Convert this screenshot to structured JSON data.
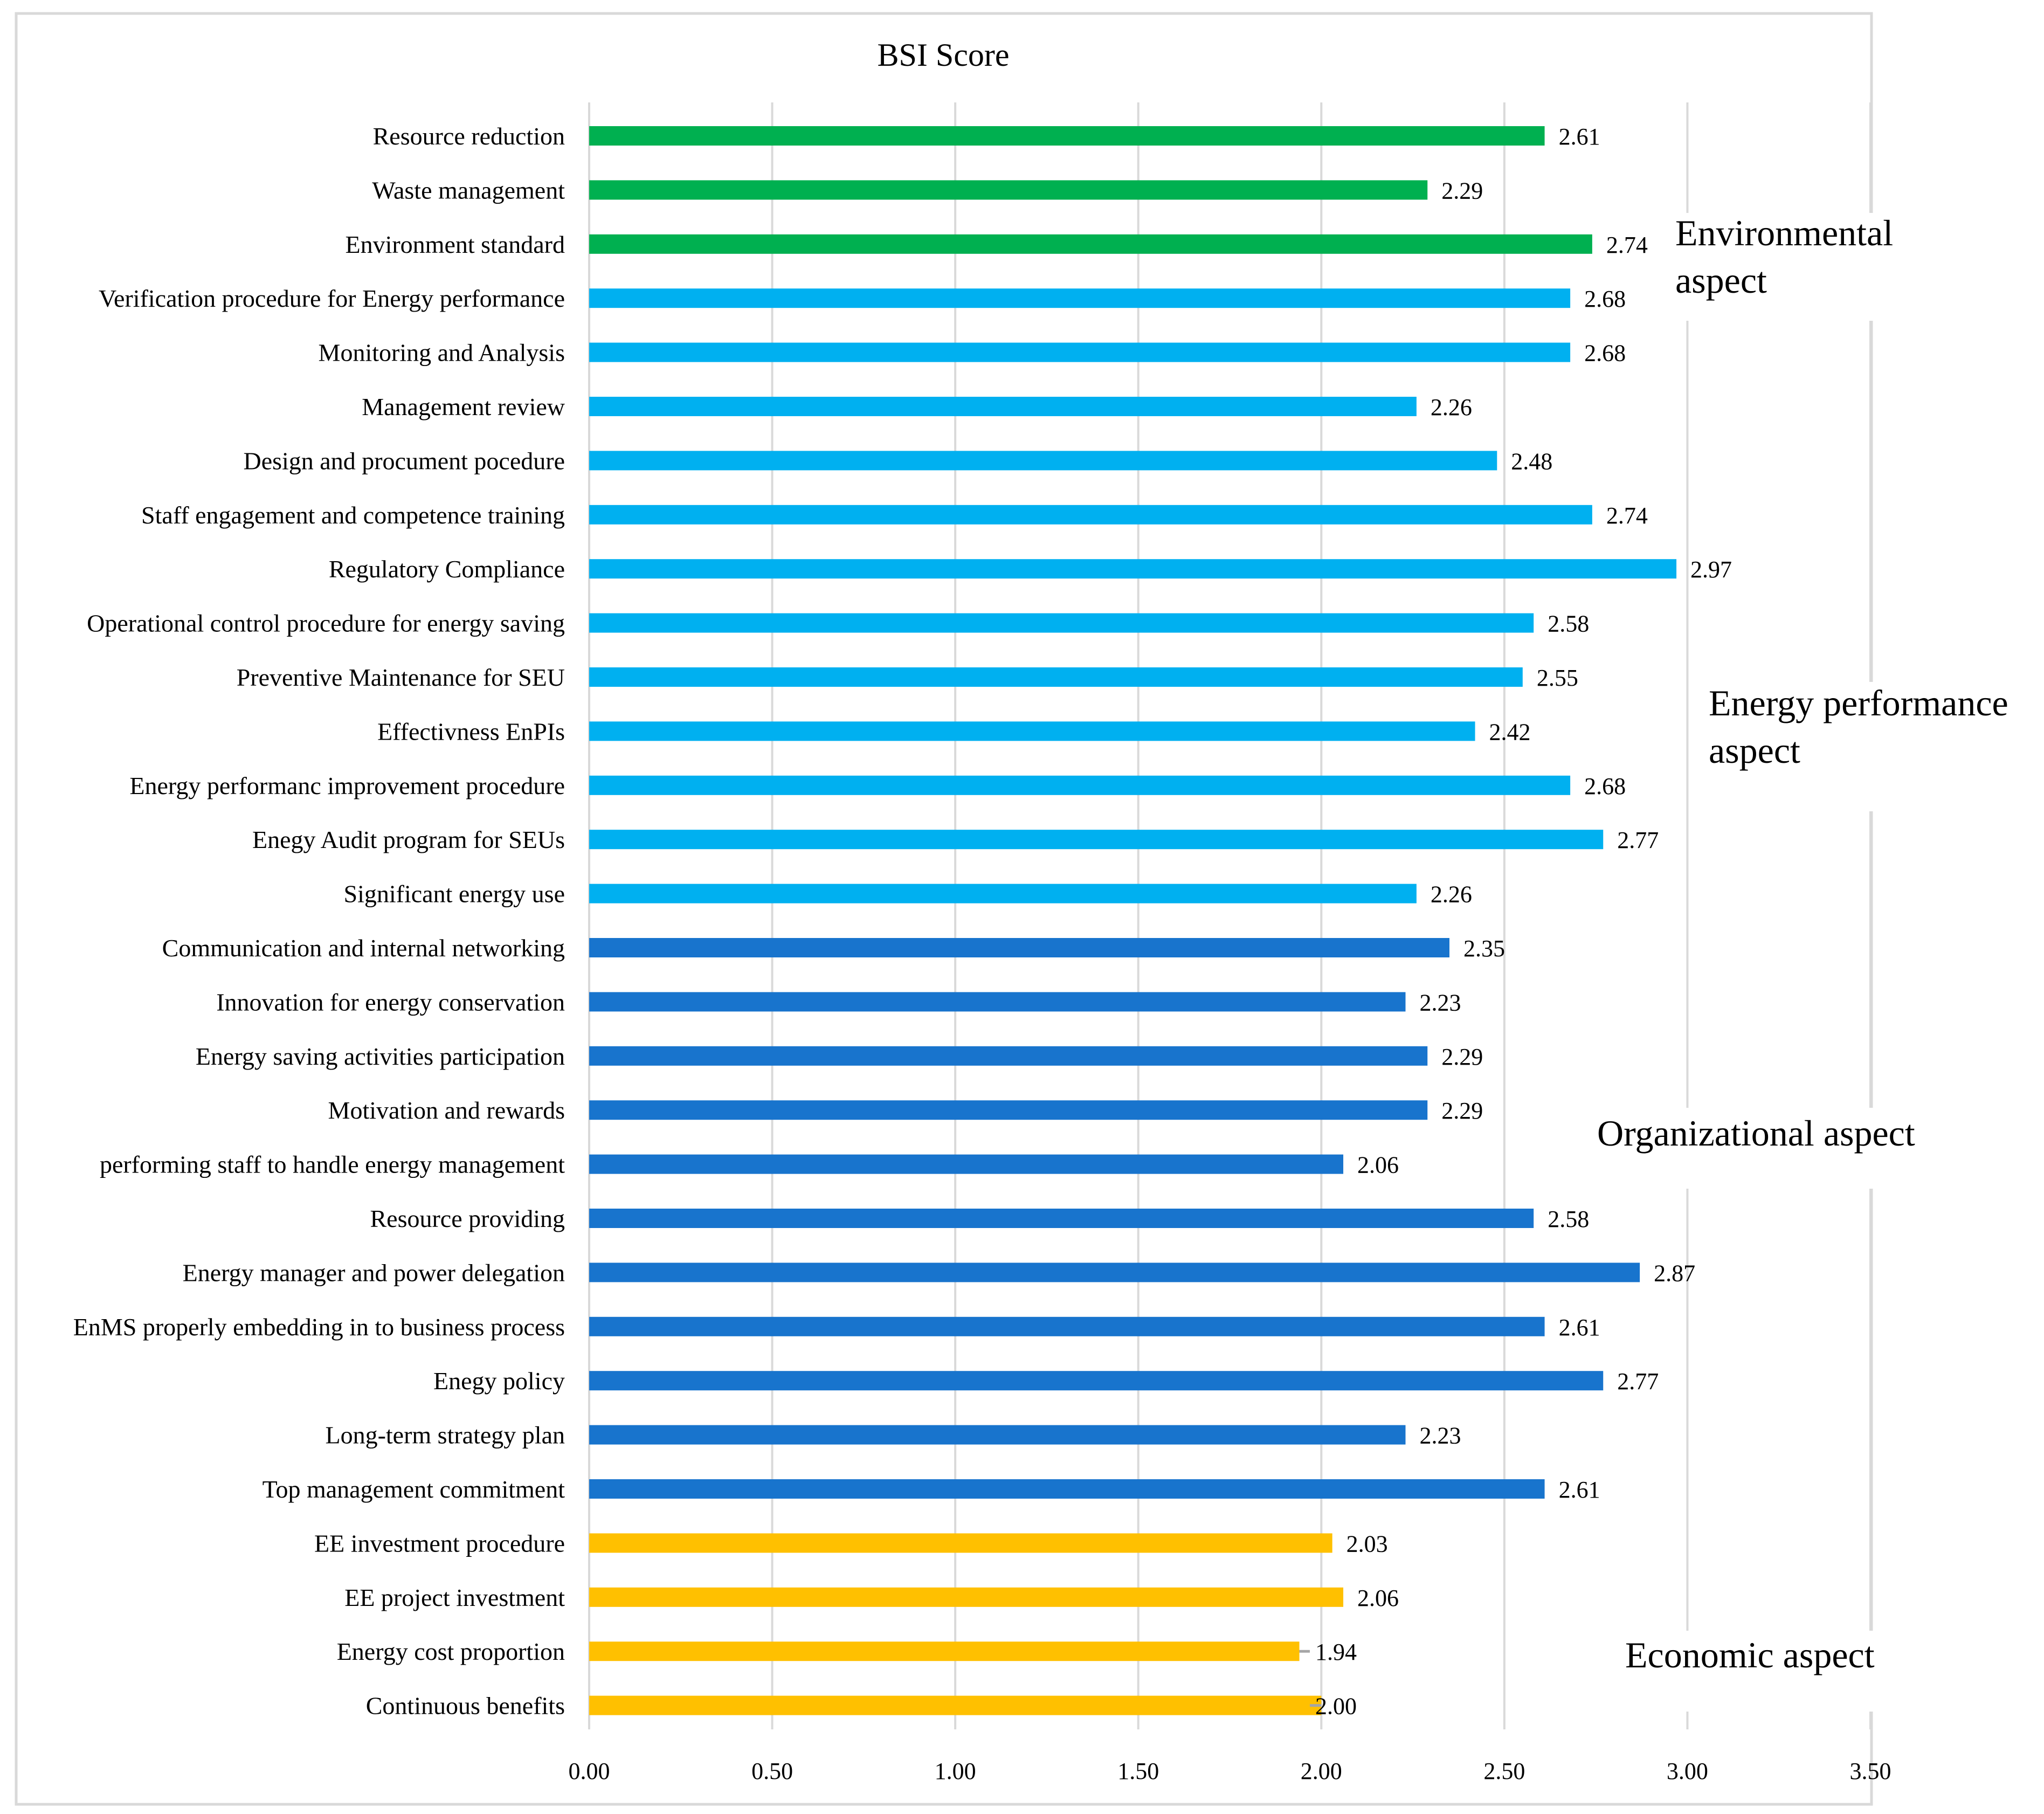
{
  "chart_data": {
    "type": "bar",
    "orientation": "horizontal",
    "title": "BSI Score",
    "xlabel": "",
    "ylabel": "",
    "xlim": [
      0,
      3.5
    ],
    "xticks": [
      "0.00",
      "0.50",
      "1.00",
      "1.50",
      "2.00",
      "2.50",
      "3.00",
      "3.50"
    ],
    "grid": true,
    "categories": [
      "Resource reduction",
      "Waste management",
      "Environment standard",
      "Verification procedure for Energy performance",
      "Monitoring and Analysis",
      "Management review",
      "Design and procument pocedure",
      "Staff engagement and competence training",
      "Regulatory Compliance",
      "Operational control procedure for energy saving",
      "Preventive Maintenance for SEU",
      "Effectivness EnPIs",
      "Energy performanc improvement procedure",
      "Enegy Audit program for SEUs",
      "Significant energy use",
      "Communication and internal networking",
      "Innovation for energy conservation",
      "Energy saving activities participation",
      "Motivation and rewards",
      "performing staff to handle energy management",
      "Resource providing",
      "Energy manager and power delegation",
      "EnMS properly embedding in to business process",
      "Enegy policy",
      "Long-term strategy plan",
      "Top management commitment",
      "EE investment procedure",
      "EE project investment",
      "Energy cost proportion",
      "Continuous benefits"
    ],
    "values": [
      2.61,
      2.29,
      2.74,
      2.68,
      2.68,
      2.26,
      2.48,
      2.74,
      2.97,
      2.58,
      2.55,
      2.42,
      2.68,
      2.77,
      2.26,
      2.35,
      2.23,
      2.29,
      2.29,
      2.06,
      2.58,
      2.87,
      2.61,
      2.77,
      2.23,
      2.61,
      2.03,
      2.06,
      1.94,
      2.0
    ],
    "value_labels": [
      "2.61",
      "2.29",
      "2.74",
      "2.68",
      "2.68",
      "2.26",
      "2.48",
      "2.74",
      "2.97",
      "2.58",
      "2.55",
      "2.42",
      "2.68",
      "2.77",
      "2.26",
      "2.35",
      "2.23",
      "2.29",
      "2.29",
      "2.06",
      "2.58",
      "2.87",
      "2.61",
      "2.77",
      "2.23",
      "2.61",
      "2.03",
      "2.06",
      "1.94",
      "2.00"
    ],
    "groups": [
      {
        "name": "Environmental aspect",
        "lines": [
          "Environmental",
          "aspect"
        ],
        "color": "#00b050",
        "start": 0,
        "end": 2
      },
      {
        "name": "Energy performance aspect",
        "lines": [
          "Energy performance",
          "aspect"
        ],
        "color": "#00b0f0",
        "start": 3,
        "end": 14
      },
      {
        "name": "Organizational aspect",
        "lines": [
          "Organizational aspect"
        ],
        "color": "#1874cd",
        "start": 15,
        "end": 25
      },
      {
        "name": "Economic aspect",
        "lines": [
          "Economic aspect"
        ],
        "color": "#ffc000",
        "start": 26,
        "end": 29
      }
    ],
    "colors": {
      "grid": "#d9d9d9",
      "frame": "#d9d9d9",
      "leader": "#a6a6a6"
    }
  }
}
